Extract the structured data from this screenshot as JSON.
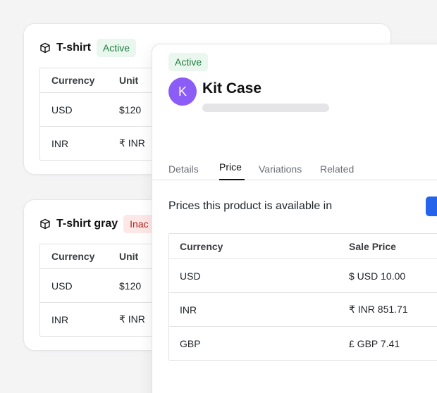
{
  "card1": {
    "title": "T-shirt",
    "badge": "Active",
    "headers": [
      "Currency",
      "Unit"
    ],
    "rows": [
      [
        "USD",
        "$120"
      ],
      [
        "INR",
        "₹ INR"
      ]
    ]
  },
  "card2": {
    "title": "T-shirt gray",
    "badge": "Inac",
    "headers": [
      "Currency",
      "Unit"
    ],
    "rows": [
      [
        "USD",
        "$120"
      ],
      [
        "INR",
        "₹ INR"
      ]
    ]
  },
  "detail": {
    "badge": "Active",
    "avatar_letter": "K",
    "title": "Kit Case",
    "tabs": [
      "Details",
      "Price",
      "Variations",
      "Related"
    ],
    "active_tab": "Price",
    "section_text": "Prices this product is available in",
    "table": {
      "headers": [
        "Currency",
        "Sale Price"
      ],
      "rows": [
        [
          "USD",
          "$ USD 10.00"
        ],
        [
          "INR",
          "₹ INR 851.71"
        ],
        [
          "GBP",
          "£ GBP 7.41"
        ]
      ]
    }
  },
  "colors": {
    "accent_blue": "#2563eb",
    "avatar_purple": "#8b5cf6",
    "active_badge_bg": "#e9f7ee",
    "inactive_badge_bg": "#fde7e7"
  }
}
